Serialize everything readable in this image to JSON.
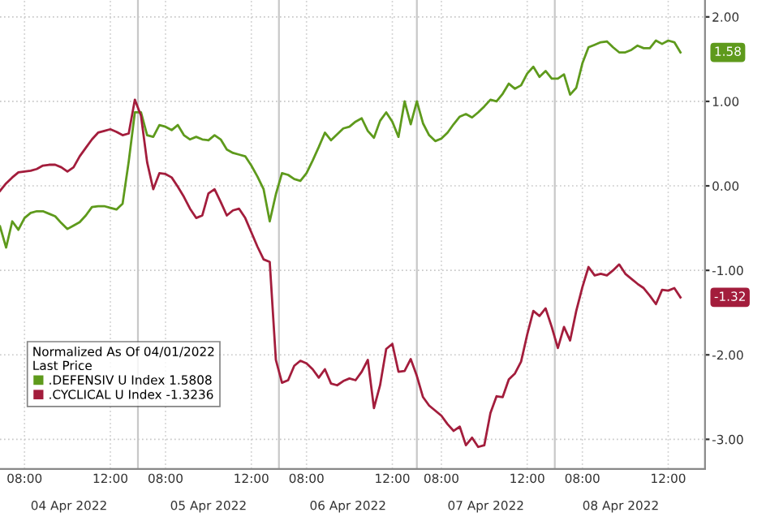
{
  "chart_data": {
    "type": "line",
    "legend_title": "Normalized As Of 04/01/2022\nLast Price",
    "categories": [
      null,
      null,
      null,
      null,
      "08:00",
      null,
      null,
      null,
      null,
      null,
      null,
      null,
      null,
      null,
      null,
      null,
      null,
      null,
      "12:00",
      null,
      null,
      null,
      null,
      null,
      null,
      null,
      null,
      "08:00",
      null,
      null,
      null,
      null,
      null,
      null,
      null,
      null,
      null,
      null,
      null,
      null,
      null,
      "12:00",
      null,
      null,
      null,
      null,
      null,
      null,
      null,
      null,
      "08:00",
      null,
      null,
      null,
      null,
      null,
      null,
      null,
      null,
      null,
      null,
      null,
      null,
      null,
      "12:00",
      null,
      null,
      null,
      null,
      null,
      null,
      null,
      "08:00",
      null,
      null,
      null,
      null,
      null,
      null,
      null,
      null,
      null,
      null,
      null,
      null,
      null,
      "12:00",
      null,
      null,
      null,
      null,
      null,
      null,
      null,
      null,
      "08:00",
      null,
      null,
      null,
      null,
      null,
      null,
      null,
      null,
      null,
      null,
      null,
      null,
      null,
      "12:00",
      null,
      null
    ],
    "ylim": [
      -3.35,
      2.2
    ],
    "yticks": [
      {
        "value": 2,
        "label": "2.00"
      },
      {
        "value": 1,
        "label": "1.00"
      },
      {
        "value": 0,
        "label": "0.00"
      },
      {
        "value": -1,
        "label": "-1.00"
      },
      {
        "value": -2,
        "label": "-2.00"
      },
      {
        "value": -3,
        "label": "-3.00"
      }
    ],
    "grid": true,
    "legend": "bottom left",
    "marker": "none",
    "line_style": "solid",
    "annotations": [
      "04 Apr 2022",
      "05 Apr 2022",
      "06 Apr 2022",
      "07 Apr 2022",
      "08 Apr 2022",
      "1.58",
      "-1.32"
    ],
    "series": [
      {
        "name": ".DEFENSIV U Index 1.5808",
        "color": "#5e9a1c",
        "values": [
          -0.48,
          -0.73,
          -0.42,
          -0.52,
          -0.38,
          -0.32,
          -0.3,
          -0.3,
          -0.33,
          -0.36,
          -0.44,
          -0.51,
          -0.47,
          -0.43,
          -0.35,
          -0.25,
          -0.24,
          -0.24,
          -0.26,
          -0.28,
          -0.21,
          0.29,
          0.87,
          0.87,
          0.6,
          0.58,
          0.72,
          0.7,
          0.66,
          0.72,
          0.6,
          0.55,
          0.58,
          0.55,
          0.54,
          0.6,
          0.55,
          0.43,
          0.39,
          0.37,
          0.35,
          0.24,
          0.11,
          -0.04,
          -0.42,
          -0.1,
          0.15,
          0.13,
          0.08,
          0.06,
          0.15,
          0.3,
          0.46,
          0.63,
          0.54,
          0.61,
          0.68,
          0.7,
          0.76,
          0.8,
          0.65,
          0.57,
          0.77,
          0.87,
          0.76,
          0.58,
          1.0,
          0.73,
          1.0,
          0.74,
          0.6,
          0.53,
          0.56,
          0.63,
          0.73,
          0.82,
          0.85,
          0.81,
          0.87,
          0.94,
          1.02,
          1.0,
          1.09,
          1.21,
          1.15,
          1.19,
          1.33,
          1.41,
          1.29,
          1.36,
          1.27,
          1.27,
          1.32,
          1.08,
          1.16,
          1.45,
          1.64,
          1.67,
          1.7,
          1.71,
          1.64,
          1.58,
          1.58,
          1.61,
          1.66,
          1.63,
          1.63,
          1.72,
          1.68,
          1.72,
          1.7,
          1.58
        ]
      },
      {
        "name": ".CYCLICAL U Index -1.3236",
        "color": "#a31d3c",
        "values": [
          -0.06,
          0.03,
          0.1,
          0.16,
          0.17,
          0.18,
          0.2,
          0.24,
          0.25,
          0.25,
          0.22,
          0.17,
          0.22,
          0.35,
          0.45,
          0.55,
          0.63,
          0.65,
          0.67,
          0.64,
          0.6,
          0.62,
          1.02,
          0.83,
          0.28,
          -0.04,
          0.15,
          0.14,
          0.1,
          -0.01,
          -0.13,
          -0.27,
          -0.38,
          -0.35,
          -0.09,
          -0.04,
          -0.19,
          -0.35,
          -0.29,
          -0.27,
          -0.38,
          -0.55,
          -0.72,
          -0.87,
          -0.9,
          -2.06,
          -2.33,
          -2.3,
          -2.13,
          -2.07,
          -2.1,
          -2.17,
          -2.27,
          -2.17,
          -2.34,
          -2.36,
          -2.31,
          -2.28,
          -2.3,
          -2.2,
          -2.06,
          -2.63,
          -2.36,
          -1.93,
          -1.87,
          -2.2,
          -2.19,
          -2.05,
          -2.25,
          -2.5,
          -2.6,
          -2.66,
          -2.72,
          -2.82,
          -2.9,
          -2.85,
          -3.07,
          -2.98,
          -3.09,
          -3.07,
          -2.69,
          -2.49,
          -2.5,
          -2.29,
          -2.22,
          -2.08,
          -1.76,
          -1.48,
          -1.54,
          -1.45,
          -1.67,
          -1.92,
          -1.67,
          -1.83,
          -1.48,
          -1.2,
          -0.96,
          -1.06,
          -1.04,
          -1.06,
          -1.0,
          -0.93,
          -1.04,
          -1.1,
          -1.16,
          -1.21,
          -1.3,
          -1.4,
          -1.23,
          -1.24,
          -1.21,
          -1.32
        ]
      }
    ]
  }
}
